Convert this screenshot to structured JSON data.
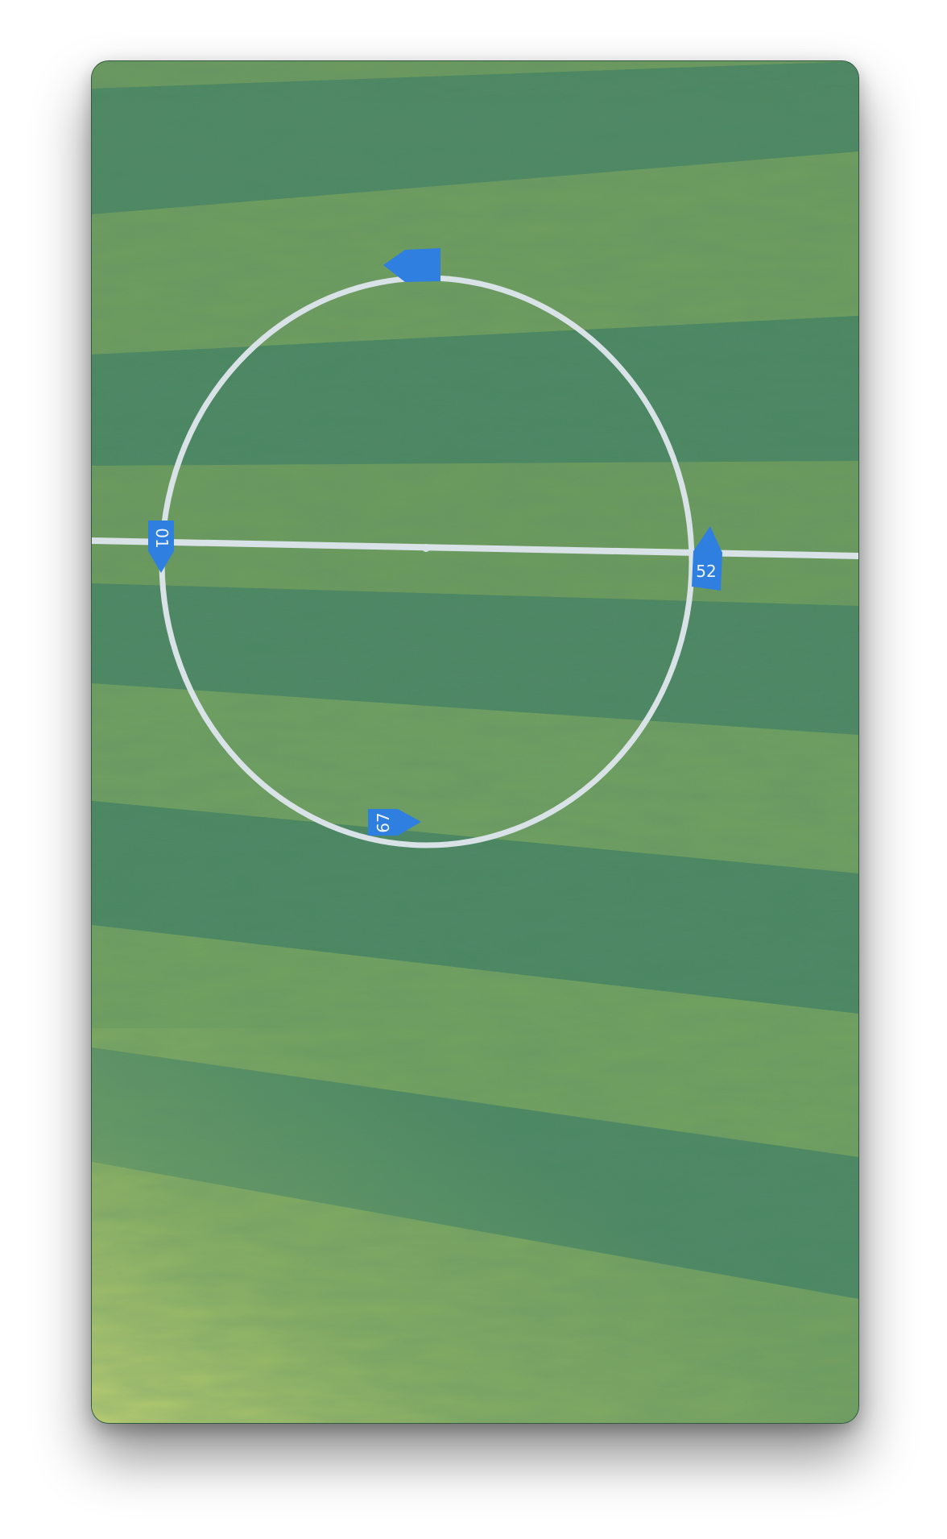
{
  "scene": {
    "subject": "aerial-football-pitch",
    "colors": {
      "grass_dark": "#4a8762",
      "grass_light": "#6e9d5c",
      "grass_bright": "#b9cc6a",
      "line": "#d9e2e6",
      "marker": "#2f7fe0",
      "marker_text": "#eef4ff"
    }
  },
  "markers": [
    {
      "name": "top",
      "label": ""
    },
    {
      "name": "left",
      "label": "01"
    },
    {
      "name": "right",
      "label": "52"
    },
    {
      "name": "bottom",
      "label": "67"
    }
  ]
}
